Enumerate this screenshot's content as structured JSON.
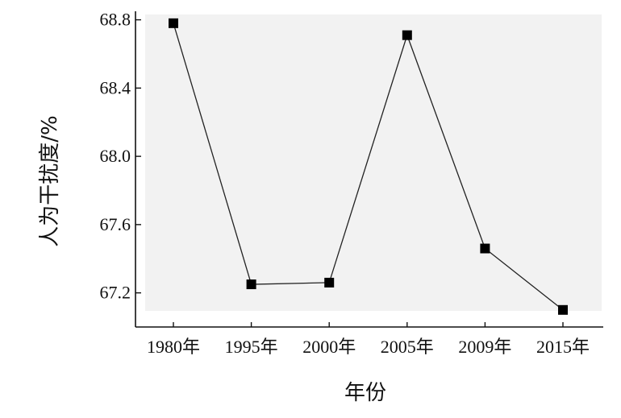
{
  "chart_data": {
    "type": "line",
    "categories": [
      "1980年",
      "1995年",
      "2000年",
      "2005年",
      "2009年",
      "2015年"
    ],
    "series": [
      {
        "values": [
          68.78,
          67.25,
          67.26,
          68.71,
          67.46,
          67.1
        ]
      }
    ],
    "xlabel": "年份",
    "ylabel": "人为干扰度/%",
    "ylim": [
      67.0,
      68.85
    ],
    "yticks": [
      67.2,
      67.6,
      68.0,
      68.4,
      68.8
    ],
    "grid": false,
    "colors": {
      "line": "#222222",
      "marker": "#000000",
      "axis": "#111111"
    }
  }
}
